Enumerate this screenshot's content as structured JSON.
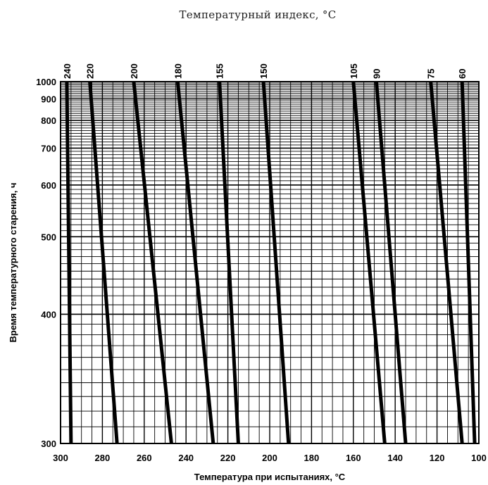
{
  "chart_data": {
    "type": "line",
    "title": "Температурный индекс, °C",
    "xlabel": "Температура при испытаниях, °C",
    "ylabel": "Время температурного старения, ч",
    "x_reversed": true,
    "xlim": [
      300,
      100
    ],
    "ylim": [
      300,
      1000
    ],
    "y_scale": "reciprocal",
    "xticks": [
      300,
      280,
      260,
      240,
      220,
      200,
      180,
      160,
      140,
      120,
      100
    ],
    "yticks": [
      300,
      400,
      500,
      600,
      700,
      800,
      900,
      1000
    ],
    "grid": true,
    "series": [
      {
        "name": "240",
        "points": [
          [
            297,
            1000
          ],
          [
            295,
            300
          ]
        ]
      },
      {
        "name": "220",
        "points": [
          [
            286,
            1000
          ],
          [
            273,
            300
          ]
        ]
      },
      {
        "name": "200",
        "points": [
          [
            265,
            1000
          ],
          [
            247,
            300
          ]
        ]
      },
      {
        "name": "180",
        "points": [
          [
            244,
            1000
          ],
          [
            227,
            300
          ]
        ]
      },
      {
        "name": "155",
        "points": [
          [
            224,
            1000
          ],
          [
            215,
            300
          ]
        ]
      },
      {
        "name": "150",
        "points": [
          [
            203,
            1000
          ],
          [
            191,
            300
          ]
        ]
      },
      {
        "name": "105",
        "points": [
          [
            160,
            1000
          ],
          [
            145,
            300
          ]
        ]
      },
      {
        "name": "90",
        "points": [
          [
            149,
            1000
          ],
          [
            135,
            300
          ]
        ]
      },
      {
        "name": "75",
        "points": [
          [
            123,
            1000
          ],
          [
            108,
            300
          ]
        ]
      },
      {
        "name": "60",
        "points": [
          [
            108,
            1000
          ],
          [
            102,
            300
          ]
        ]
      }
    ]
  }
}
